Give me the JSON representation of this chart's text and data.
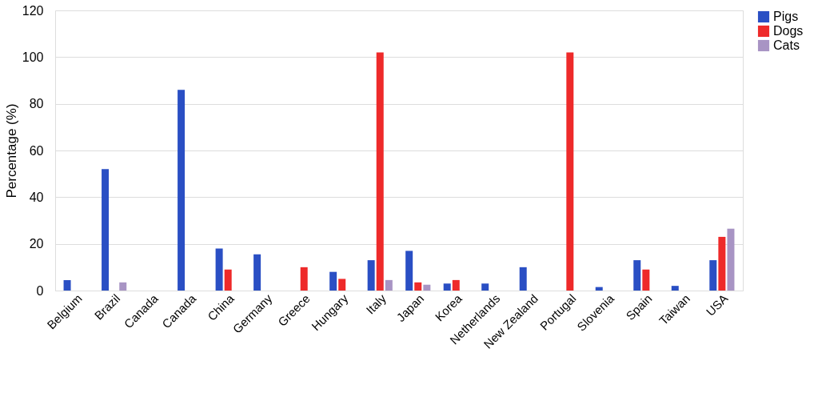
{
  "chart_data": {
    "type": "bar",
    "ylabel": "Percentage (%)",
    "categories": [
      "Belgium",
      "Brazil",
      "Canada",
      "Canada",
      "China",
      "Germany",
      "Greece",
      "Hungary",
      "Italy",
      "Japan",
      "Korea",
      "Netherlands",
      "New Zealand",
      "Portugal",
      "Slovenia",
      "Spain",
      "Taiwan",
      "USA"
    ],
    "series": [
      {
        "name": "Pigs",
        "color": "#2a4fc4",
        "values": [
          4.5,
          52,
          null,
          86,
          18,
          15.5,
          null,
          8,
          13,
          17,
          3,
          3,
          10,
          null,
          1.5,
          13,
          2,
          13
        ]
      },
      {
        "name": "Dogs",
        "color": "#ee2a2a",
        "values": [
          null,
          null,
          null,
          null,
          9,
          null,
          10,
          5,
          102,
          3.5,
          4.5,
          null,
          null,
          102,
          null,
          9,
          null,
          23
        ]
      },
      {
        "name": "Cats",
        "color": "#a894c4",
        "values": [
          null,
          3.5,
          null,
          null,
          null,
          null,
          null,
          null,
          4.5,
          2.5,
          null,
          null,
          null,
          null,
          null,
          null,
          null,
          26.5
        ]
      }
    ],
    "ylim": [
      0,
      120
    ],
    "yticks": [
      0,
      20,
      40,
      60,
      80,
      100,
      120
    ],
    "grid": "y",
    "legend": "right"
  }
}
